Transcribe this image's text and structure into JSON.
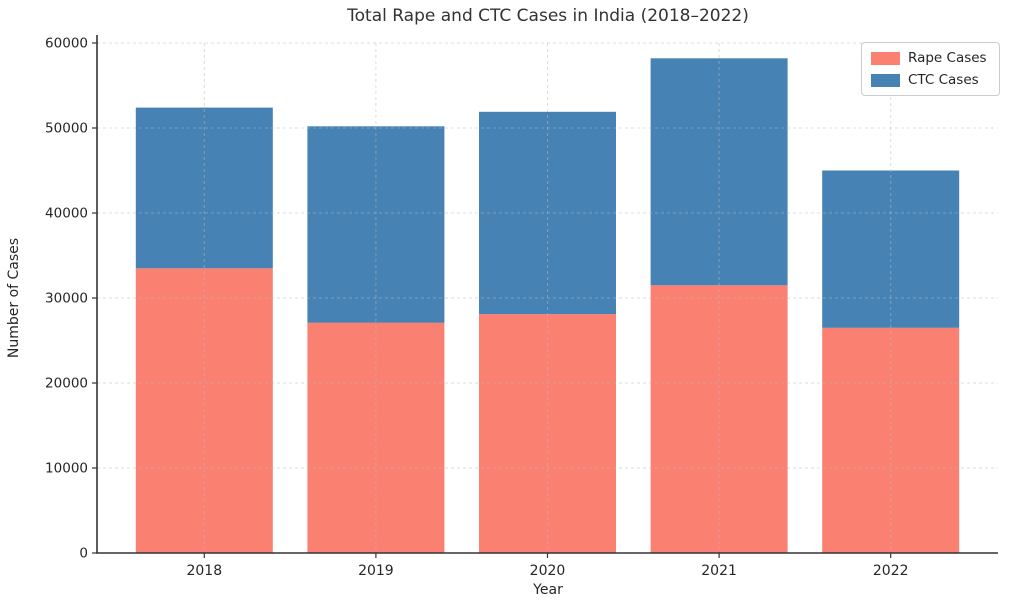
{
  "chart_data": {
    "type": "bar",
    "stacked": true,
    "title": "Total Rape and CTC Cases in India (2018–2022)",
    "xlabel": "Year",
    "ylabel": "Number of Cases",
    "categories": [
      "2018",
      "2019",
      "2020",
      "2021",
      "2022"
    ],
    "series": [
      {
        "name": "Rape Cases",
        "color": "#FA8072",
        "values": [
          33500,
          27100,
          28100,
          31500,
          26500
        ]
      },
      {
        "name": "CTC Cases",
        "color": "#4682B4",
        "values": [
          18900,
          23100,
          23800,
          26700,
          18500
        ]
      }
    ],
    "ylim": [
      0,
      60000
    ],
    "yticks": [
      0,
      10000,
      20000,
      30000,
      40000,
      50000,
      60000
    ],
    "ytick_labels": [
      "0",
      "10000",
      "20000",
      "30000",
      "40000",
      "50000",
      "60000"
    ],
    "grid": true,
    "grid_style": "dashed",
    "legend_position": "upper right"
  },
  "colors": {
    "text": "#262626",
    "title": "#333333",
    "grid": "#bbbbbb",
    "spine": "#333333",
    "background": "#ffffff"
  }
}
